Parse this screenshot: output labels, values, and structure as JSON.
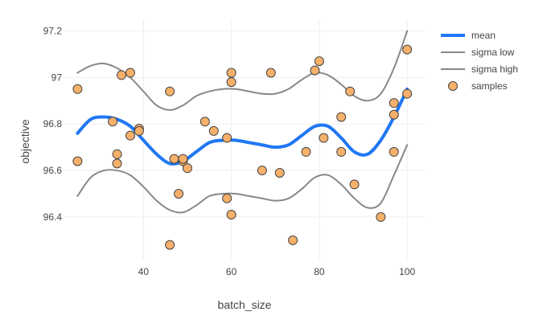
{
  "chart_data": {
    "type": "line",
    "xlabel": "batch_size",
    "ylabel": "objective",
    "xlim": [
      22,
      104
    ],
    "ylim": [
      96.22,
      97.25
    ],
    "xticks": [
      40,
      60,
      80,
      100
    ],
    "yticks": [
      96.4,
      96.6,
      96.8,
      97,
      97.2
    ],
    "ytick_labels": [
      "96.4",
      "96.6",
      "96.8",
      "97",
      "97.2"
    ],
    "grid": true,
    "legend_position": "top-right",
    "series": [
      {
        "name": "mean",
        "kind": "line",
        "color": "#1f77f4",
        "width": 4,
        "x": [
          25,
          28,
          31,
          34,
          37,
          40,
          43,
          46,
          49,
          52,
          55,
          58,
          61,
          64,
          67,
          70,
          73,
          76,
          79,
          82,
          85,
          88,
          91,
          94,
          97,
          100
        ],
        "y": [
          96.76,
          96.82,
          96.83,
          96.82,
          96.79,
          96.73,
          96.67,
          96.63,
          96.64,
          96.68,
          96.72,
          96.73,
          96.73,
          96.72,
          96.71,
          96.7,
          96.71,
          96.75,
          96.79,
          96.79,
          96.74,
          96.68,
          96.67,
          96.73,
          96.83,
          96.95
        ]
      },
      {
        "name": "sigma low",
        "kind": "line",
        "color": "#888888",
        "width": 2,
        "x": [
          25,
          28,
          31,
          34,
          37,
          40,
          43,
          46,
          49,
          52,
          55,
          58,
          61,
          64,
          67,
          70,
          73,
          76,
          79,
          82,
          85,
          88,
          91,
          94,
          97,
          100
        ],
        "y": [
          96.49,
          96.57,
          96.6,
          96.6,
          96.58,
          96.53,
          96.47,
          96.43,
          96.42,
          96.45,
          96.49,
          96.5,
          96.5,
          96.49,
          96.48,
          96.47,
          96.48,
          96.52,
          96.57,
          96.58,
          96.54,
          96.48,
          96.44,
          96.46,
          96.58,
          96.71
        ]
      },
      {
        "name": "sigma high",
        "kind": "line",
        "color": "#888888",
        "width": 2,
        "x": [
          25,
          28,
          31,
          34,
          37,
          40,
          43,
          46,
          49,
          52,
          55,
          58,
          61,
          64,
          67,
          70,
          73,
          76,
          79,
          82,
          85,
          88,
          91,
          94,
          97,
          100
        ],
        "y": [
          97.02,
          97.05,
          97.06,
          97.04,
          97.0,
          96.94,
          96.88,
          96.86,
          96.88,
          96.92,
          96.94,
          96.95,
          96.95,
          96.94,
          96.93,
          96.93,
          96.95,
          96.99,
          97.02,
          97.01,
          96.97,
          96.92,
          96.9,
          96.93,
          97.04,
          97.2
        ]
      },
      {
        "name": "samples",
        "kind": "scatter",
        "color": "#f5b06a",
        "stroke": "#444444",
        "x": [
          25,
          25,
          33,
          34,
          34,
          35,
          37,
          37,
          39,
          39,
          46,
          46,
          47,
          48,
          49,
          49,
          50,
          54,
          56,
          59,
          59,
          60,
          60,
          60,
          67,
          69,
          71,
          74,
          77,
          79,
          80,
          81,
          85,
          85,
          87,
          88,
          94,
          97,
          97,
          97,
          100,
          100
        ],
        "y": [
          96.95,
          96.64,
          96.81,
          96.67,
          96.63,
          97.01,
          97.02,
          96.75,
          96.78,
          96.77,
          96.94,
          96.28,
          96.65,
          96.5,
          96.64,
          96.65,
          96.61,
          96.81,
          96.77,
          96.74,
          96.48,
          97.02,
          96.98,
          96.41,
          96.6,
          97.02,
          96.59,
          96.3,
          96.68,
          97.03,
          97.07,
          96.74,
          96.83,
          96.68,
          96.94,
          96.54,
          96.4,
          96.89,
          96.84,
          96.68,
          97.12,
          96.93
        ]
      }
    ]
  }
}
